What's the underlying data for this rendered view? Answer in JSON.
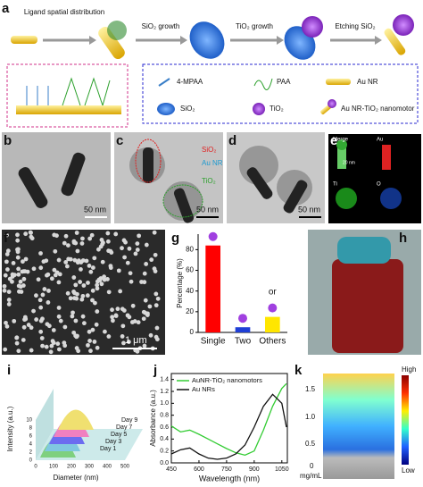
{
  "figure": {
    "panel_labels": [
      "a",
      "b",
      "c",
      "d",
      "e",
      "f",
      "g",
      "h",
      "i",
      "j",
      "k"
    ],
    "scheme": {
      "steps": [
        "Ligand spatial distribution",
        "SiO₂ growth",
        "TiO₂ growth",
        "Etching SiO₂"
      ],
      "legend": [
        "4-MPAA",
        "PAA",
        "Au NR",
        "SiO₂",
        "TiO₂",
        "Au NR-TiO₂ nanomotor"
      ]
    },
    "scale_bars": {
      "b": "50 nm",
      "c": "50 nm",
      "d": "50 nm",
      "e": "20 nm",
      "f": "1 μm"
    },
    "c_annotations": [
      "SiO₂",
      "Au NR",
      "TiO₂"
    ],
    "e_maps": [
      "Merge",
      "Au",
      "Ti",
      "O"
    ],
    "i": {
      "xlabel": "Diameter (nm)",
      "ylabel": "Intensity (a.u.)",
      "xticks": [
        0,
        100,
        200,
        300,
        400,
        500
      ],
      "yticks": [
        0,
        2,
        4,
        6,
        8,
        10
      ],
      "days": [
        "Day 1",
        "Day 3",
        "Day 5",
        "Day 7",
        "Day 9"
      ]
    },
    "k": {
      "colorbar": [
        "High",
        "Low"
      ],
      "concentrations": [
        "1.5",
        "1.0",
        "0.5",
        "0"
      ],
      "unit": "mg/mL"
    }
  },
  "chart_data": [
    {
      "type": "bar",
      "ylabel": "Percentage (%)",
      "categories": [
        "Single",
        "Two",
        "Others"
      ],
      "values": [
        84,
        5,
        15
      ],
      "colors": [
        "#ff0000",
        "#1f3fd6",
        "#ffe600"
      ],
      "ylim": [
        0,
        95
      ],
      "yticks": [
        0,
        20,
        40,
        60,
        80
      ],
      "annotation": "or"
    },
    {
      "type": "line",
      "xlabel": "Wavelength (nm)",
      "ylabel": "Absorbance (a.u.)",
      "x": [
        450,
        500,
        550,
        600,
        650,
        700,
        750,
        800,
        850,
        900,
        950,
        1000,
        1050,
        1075
      ],
      "series": [
        {
          "name": "AuNR-TiO₂ nanomotors",
          "color": "#33cc33",
          "values": [
            0.62,
            0.52,
            0.55,
            0.48,
            0.4,
            0.32,
            0.24,
            0.17,
            0.13,
            0.2,
            0.55,
            0.95,
            1.25,
            1.33
          ]
        },
        {
          "name": "Au NRs",
          "color": "#111111",
          "values": [
            0.15,
            0.22,
            0.25,
            0.15,
            0.08,
            0.06,
            0.08,
            0.15,
            0.3,
            0.6,
            0.95,
            1.15,
            1.0,
            0.6
          ]
        }
      ],
      "xlim": [
        450,
        1080
      ],
      "ylim": [
        0,
        1.5
      ],
      "xticks": [
        450,
        600,
        750,
        900,
        1050
      ],
      "yticks": [
        {
          "value": 0,
          "label": "0.0"
        },
        0.2,
        0.4,
        0.6,
        0.8,
        {
          "value": 1,
          "label": "1.0"
        },
        1.2,
        1.4
      ]
    }
  ]
}
